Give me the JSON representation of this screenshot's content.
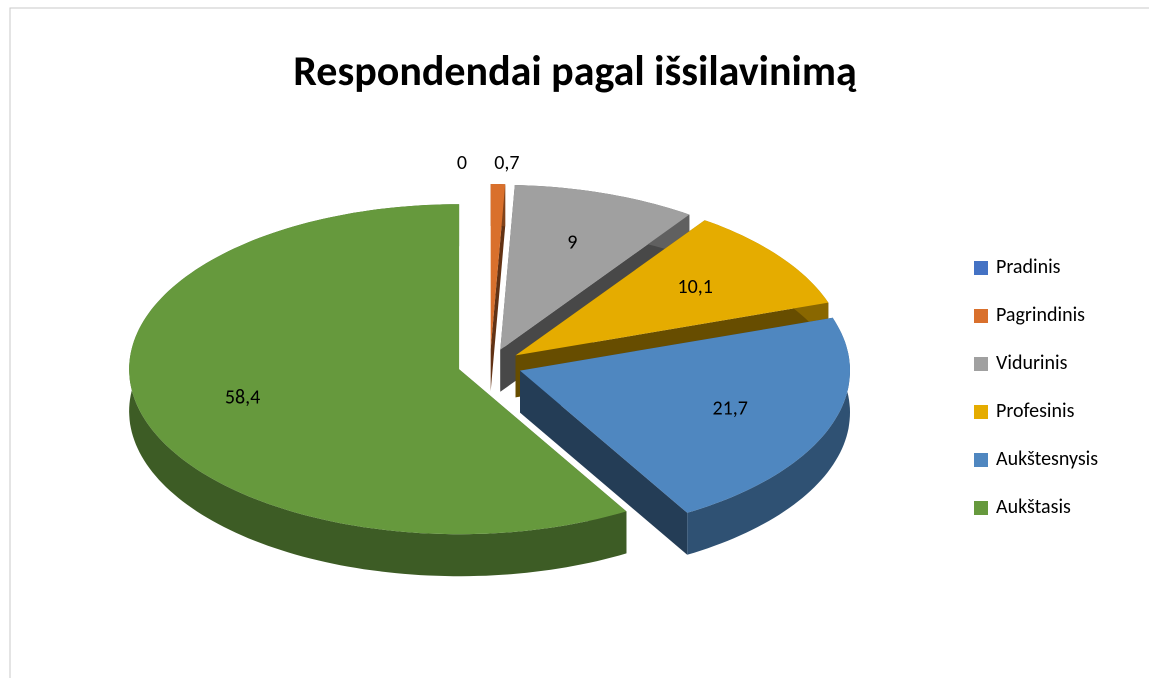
{
  "chart_data": {
    "type": "pie",
    "title": "Respondendai pagal išsilavinimą",
    "categories": [
      "Pradinis",
      "Pagrindinis",
      "Vidurinis",
      "Profesinis",
      "Aukštesnysis",
      "Aukštasis"
    ],
    "values": [
      0,
      0.7,
      9,
      10.1,
      21.7,
      58.4
    ],
    "value_labels": [
      "0",
      "0,7",
      "9",
      "10,1",
      "21,7",
      "58,4"
    ],
    "colors": [
      "#4472c4",
      "#d9702c",
      "#a0a0a0",
      "#e5ac00",
      "#4f87c0",
      "#66993d"
    ],
    "legend": "right"
  }
}
